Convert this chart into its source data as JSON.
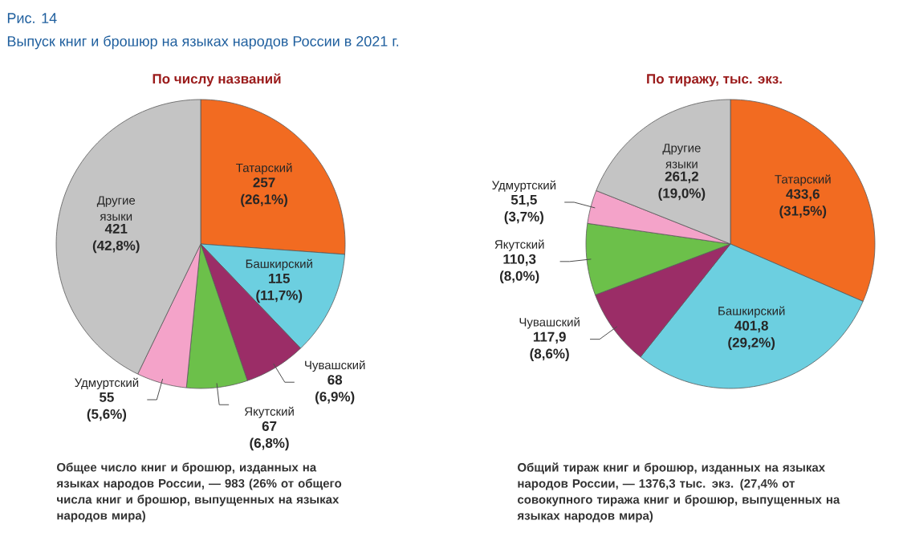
{
  "chart_data": [
    {
      "type": "other",
      "title": "Выпуск книг и брошюр на языках народов России в 2021 г.",
      "annotations": [
        "Рис. 14"
      ]
    },
    {
      "type": "pie",
      "title": "По числу названий",
      "categories": [
        "Татарский",
        "Башкирский",
        "Чувашский",
        "Якутский",
        "Удмуртский",
        "Другие языки"
      ],
      "values": [
        257,
        115,
        68,
        67,
        55,
        421
      ],
      "colors": [
        "#f26b21",
        "#6ccfe0",
        "#9b2d67",
        "#6cc04a",
        "#f4a3c9",
        "#c4c4c4"
      ],
      "value_labels": [
        "257 (26,1%)",
        "115 (11,7%)",
        "68 (6,9%)",
        "67 (6,8%)",
        "55 (5,6%)",
        "421 (42,8%)"
      ],
      "annotations": [
        "Общее число книг и брошюр, изданных на языках народов России, — 983 (26% от общего числа книг и брошюр, выпущенных на языках народов мира)"
      ]
    },
    {
      "type": "pie",
      "title": "По тиражу, тыс. экз.",
      "categories": [
        "Татарский",
        "Башкирский",
        "Чувашский",
        "Якутский",
        "Удмуртский",
        "Другие языки"
      ],
      "values": [
        433.6,
        401.8,
        117.9,
        110.3,
        51.5,
        261.2
      ],
      "colors": [
        "#f26b21",
        "#6ccfe0",
        "#9b2d67",
        "#6cc04a",
        "#f4a3c9",
        "#c4c4c4"
      ],
      "value_labels": [
        "433,6 (31,5%)",
        "401,8 (29,2%)",
        "117,9 (8,6%)",
        "110,3 (8,0%)",
        "51,5 (3,7%)",
        "261,2 (19,0%)"
      ],
      "annotations": [
        "Общий тираж книг и брошюр, изданных на языках народов России, — 1376,3 тыс. экз. (27,4% от совокупного тиража книг и брошюр, выпущенных на языках народов мира)"
      ]
    }
  ]
}
